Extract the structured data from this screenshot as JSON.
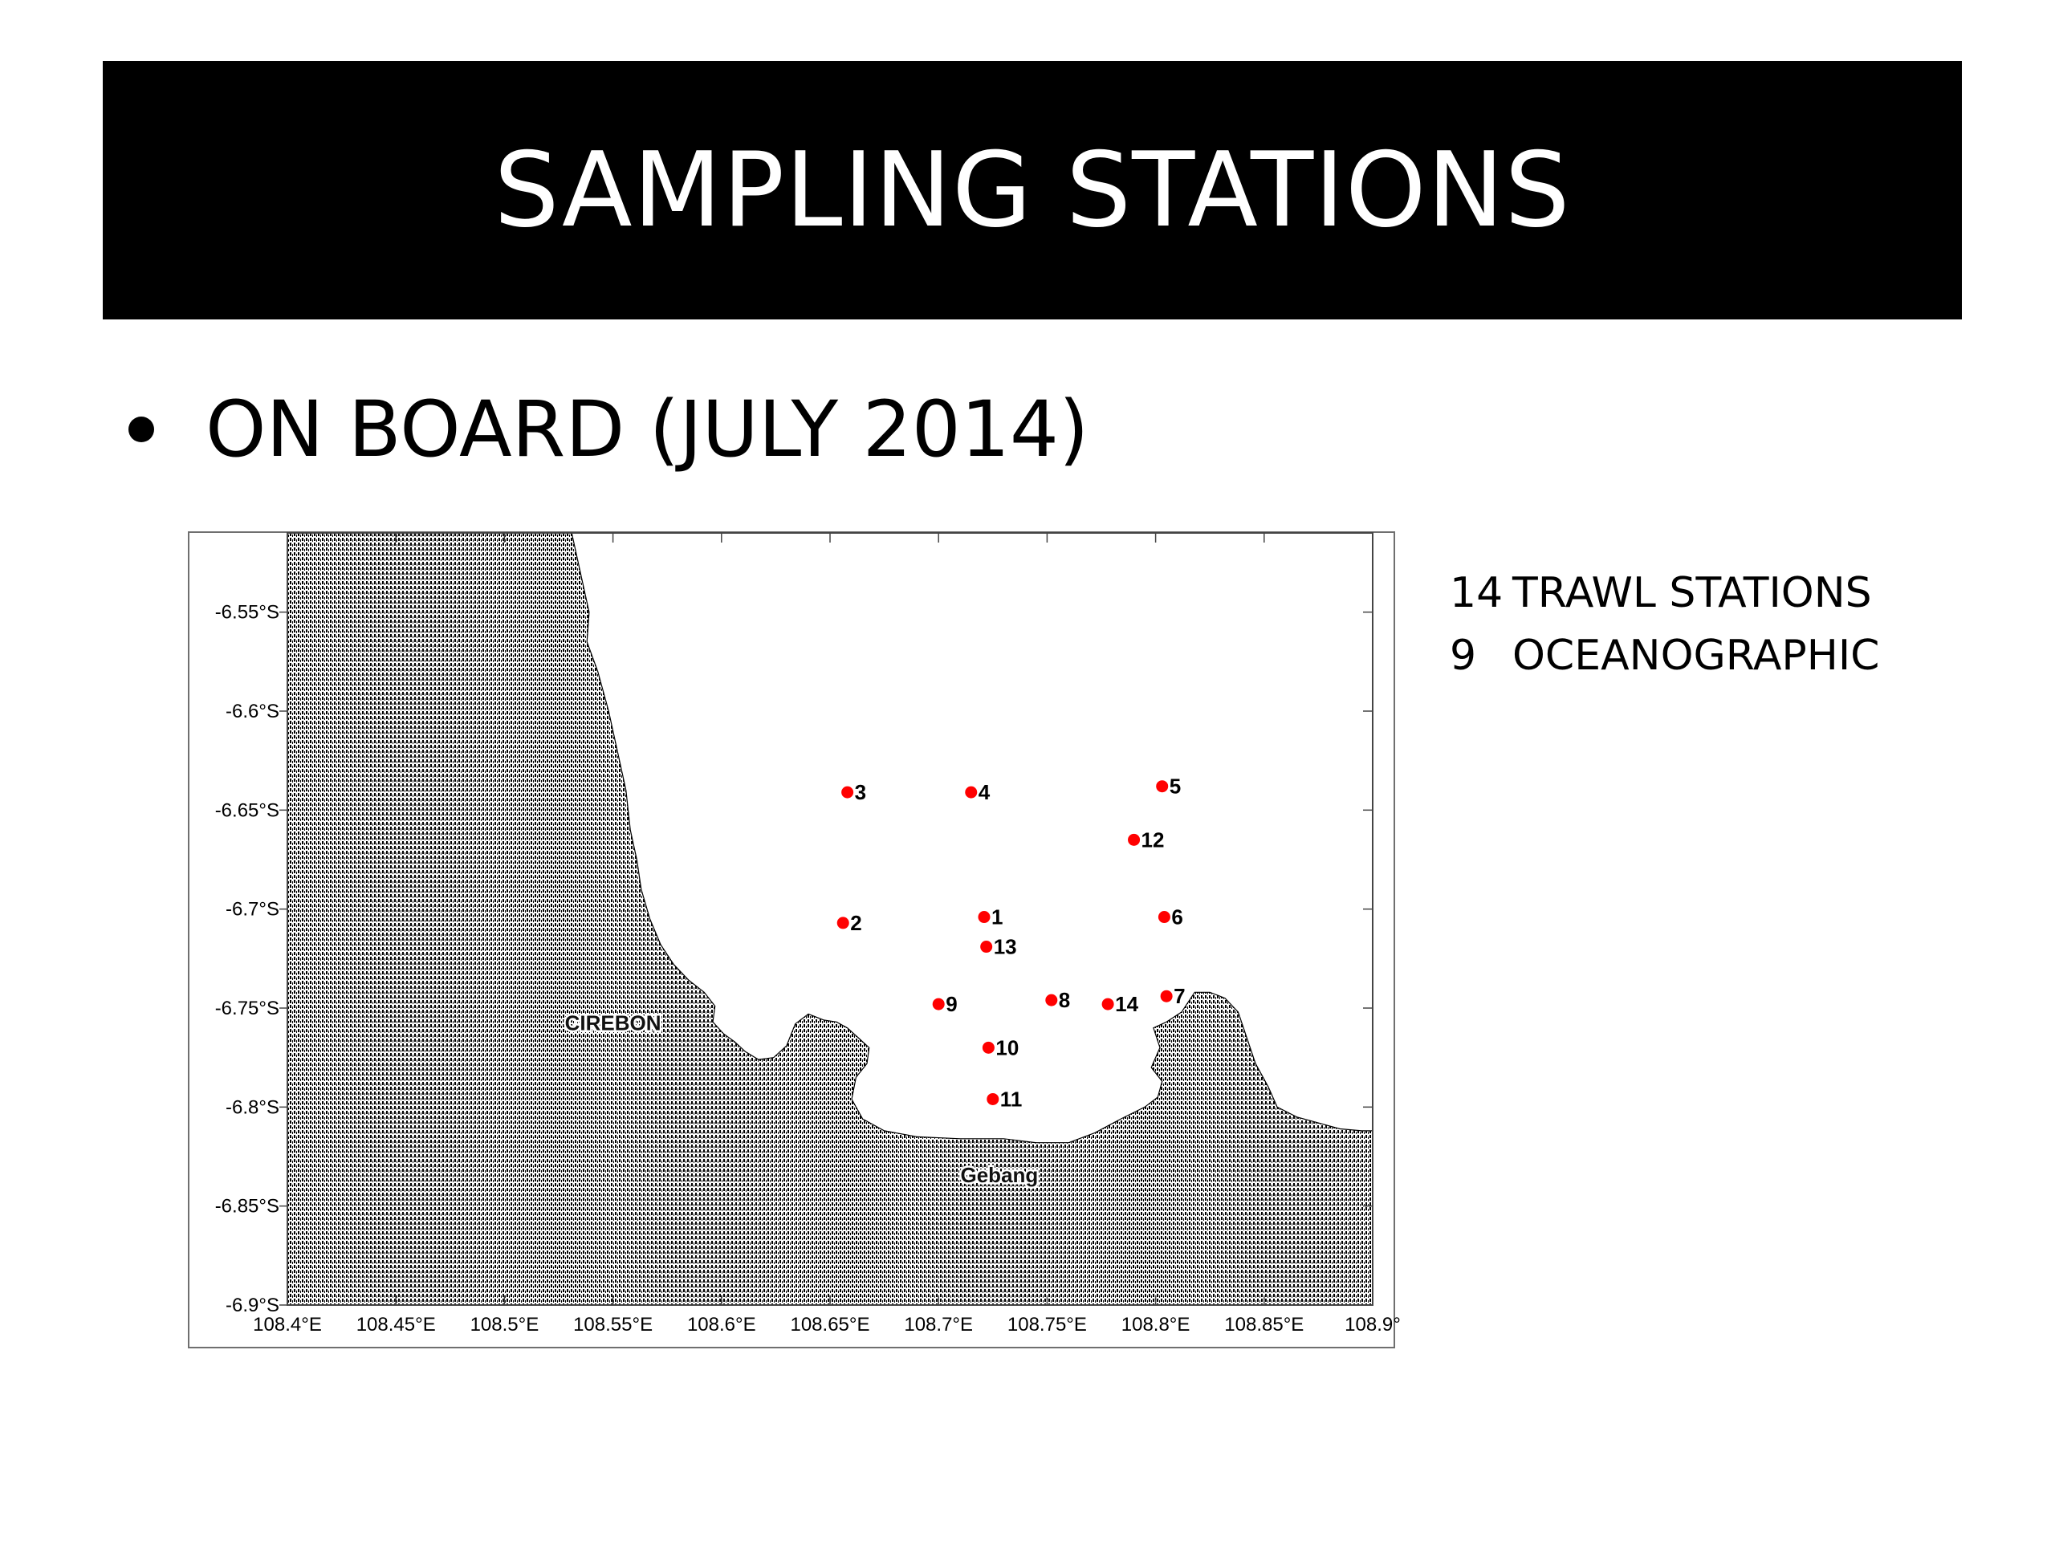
{
  "slide": {
    "title": "SAMPLING STATIONS",
    "bullet": "ON BOARD (JULY 2014)",
    "stats": [
      {
        "count": "14",
        "label": "TRAWL STATIONS"
      },
      {
        "count": "9",
        "label": "OCEANOGRAPHIC"
      }
    ]
  },
  "map": {
    "lon_range": [
      108.4,
      108.9
    ],
    "lat_range": [
      -6.9,
      -6.51
    ],
    "x_ticks": [
      "108.4°E",
      "108.45°E",
      "108.5°E",
      "108.55°E",
      "108.6°E",
      "108.65°E",
      "108.7°E",
      "108.75°E",
      "108.8°E",
      "108.85°E",
      "108.9°"
    ],
    "y_ticks": [
      "-6.55°S",
      "-6.6°S",
      "-6.65°S",
      "-6.7°S",
      "-6.75°S",
      "-6.8°S",
      "-6.85°S",
      "-6.9°S"
    ],
    "place_labels": [
      {
        "name": "CIREBON",
        "lon": 108.55,
        "lat": -6.757
      },
      {
        "name": "Gebang",
        "lon": 108.728,
        "lat": -6.834
      }
    ],
    "stations": [
      {
        "id": "1",
        "lon": 108.721,
        "lat": -6.704
      },
      {
        "id": "2",
        "lon": 108.656,
        "lat": -6.707
      },
      {
        "id": "3",
        "lon": 108.658,
        "lat": -6.641
      },
      {
        "id": "4",
        "lon": 108.715,
        "lat": -6.641
      },
      {
        "id": "5",
        "lon": 108.803,
        "lat": -6.638
      },
      {
        "id": "6",
        "lon": 108.804,
        "lat": -6.704
      },
      {
        "id": "7",
        "lon": 108.805,
        "lat": -6.744
      },
      {
        "id": "8",
        "lon": 108.752,
        "lat": -6.746
      },
      {
        "id": "9",
        "lon": 108.7,
        "lat": -6.748
      },
      {
        "id": "10",
        "lon": 108.723,
        "lat": -6.77
      },
      {
        "id": "11",
        "lon": 108.725,
        "lat": -6.796
      },
      {
        "id": "12",
        "lon": 108.79,
        "lat": -6.665
      },
      {
        "id": "13",
        "lon": 108.722,
        "lat": -6.719
      },
      {
        "id": "14",
        "lon": 108.778,
        "lat": -6.748
      }
    ],
    "colors": {
      "station": "#ff0000",
      "land": "#000000"
    }
  }
}
